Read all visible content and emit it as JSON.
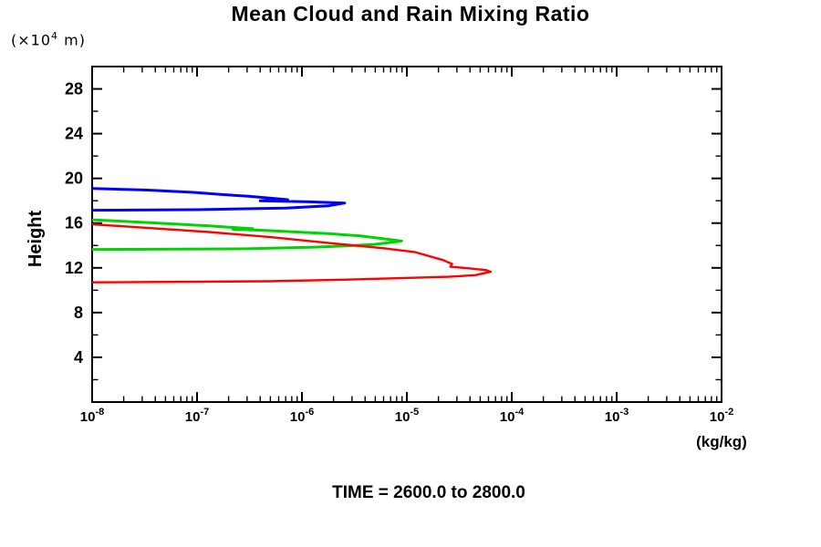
{
  "chart_data": {
    "type": "line",
    "title": "Mean Cloud and Rain Mixing Ratio",
    "ylabel": "Height",
    "y_unit": {
      "prefix": "(×10",
      "exp": "4",
      "suffix": " m)"
    },
    "xlabel": "(kg/kg)",
    "footer": "TIME = 2600.0 to 2800.0",
    "x_scale": "log",
    "x_range": [
      1e-08,
      0.01
    ],
    "x_ticks": [
      {
        "base": "10",
        "exp": "-8"
      },
      {
        "base": "10",
        "exp": "-7"
      },
      {
        "base": "10",
        "exp": "-6"
      },
      {
        "base": "10",
        "exp": "-5"
      },
      {
        "base": "10",
        "exp": "-4"
      },
      {
        "base": "10",
        "exp": "-3"
      },
      {
        "base": "10",
        "exp": "-2"
      }
    ],
    "y_range": [
      0,
      30
    ],
    "y_ticks_major": [
      4,
      8,
      12,
      16,
      20,
      24,
      28
    ],
    "y_ticks_minor": [
      2,
      6,
      10,
      14,
      18,
      22,
      26
    ],
    "grid": false,
    "legend": "none",
    "series": [
      {
        "name": "blue-contour",
        "color": "#0000ff",
        "points": [
          [
            1e-08,
            19.1
          ],
          [
            3.4e-08,
            18.95
          ],
          [
            9.2e-08,
            18.75
          ],
          [
            1.8e-07,
            18.55
          ],
          [
            3.1e-07,
            18.4
          ],
          [
            7.3e-07,
            18.1
          ],
          [
            4e-07,
            18.0
          ],
          [
            1.2e-06,
            17.9
          ],
          [
            2.56e-06,
            17.8
          ],
          [
            1.8e-06,
            17.55
          ],
          [
            7e-07,
            17.35
          ],
          [
            1e-07,
            17.2
          ],
          [
            1e-08,
            17.15
          ]
        ]
      },
      {
        "name": "green-contour",
        "color": "#00d400",
        "points": [
          [
            1e-08,
            16.3
          ],
          [
            3.4e-08,
            16.05
          ],
          [
            1.3e-07,
            15.75
          ],
          [
            3.4e-07,
            15.5
          ],
          [
            2.2e-07,
            15.45
          ],
          [
            4.5e-07,
            15.35
          ],
          [
            1.86e-06,
            15.05
          ],
          [
            3.6e-06,
            14.85
          ],
          [
            6e-06,
            14.6
          ],
          [
            8.9e-06,
            14.4
          ],
          [
            5e-06,
            14.1
          ],
          [
            2.5e-06,
            13.95
          ],
          [
            1.3e-06,
            13.85
          ],
          [
            3e-07,
            13.7
          ],
          [
            1e-08,
            13.65
          ]
        ]
      },
      {
        "name": "red-contour",
        "color": "#ff0000",
        "points": [
          [
            1e-08,
            15.9
          ],
          [
            1.3e-07,
            15.2
          ],
          [
            5e-07,
            14.75
          ],
          [
            1.9e-06,
            14.2
          ],
          [
            6e-06,
            13.75
          ],
          [
            1.2e-05,
            13.4
          ],
          [
            2.2e-05,
            12.7
          ],
          [
            2.7e-05,
            12.35
          ],
          [
            2.6e-05,
            12.1
          ],
          [
            4e-05,
            11.95
          ],
          [
            5.7e-05,
            11.8
          ],
          [
            6.3e-05,
            11.65
          ],
          [
            4.5e-05,
            11.35
          ],
          [
            2.5e-05,
            11.2
          ],
          [
            2.7e-06,
            10.95
          ],
          [
            5e-07,
            10.8
          ],
          [
            1e-08,
            10.7
          ]
        ]
      }
    ]
  }
}
